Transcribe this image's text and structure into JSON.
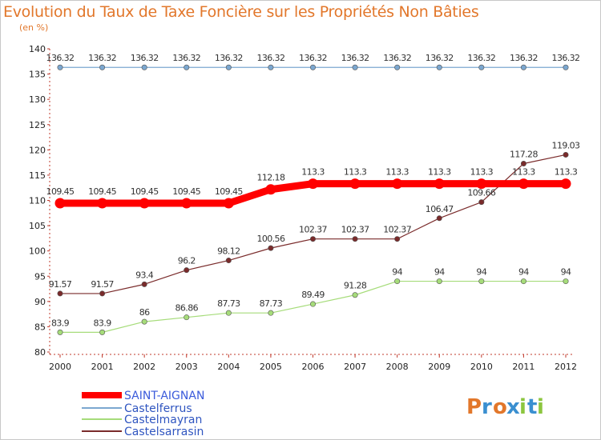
{
  "chart_data": {
    "type": "line",
    "title": "Evolution du Taux de Taxe Foncière sur les Propriétés Non Bâties",
    "subtitle": "(en %)",
    "x": [
      "2000",
      "2001",
      "2002",
      "2003",
      "2004",
      "2005",
      "2006",
      "2007",
      "2008",
      "2009",
      "2010",
      "2011",
      "2012"
    ],
    "ylim": [
      80,
      140
    ],
    "yticks": [
      80,
      85,
      90,
      95,
      100,
      105,
      110,
      115,
      120,
      125,
      130,
      135,
      140
    ],
    "grid": false,
    "legend_position": "bottom-left",
    "series": [
      {
        "name": "SAINT-AIGNAN",
        "color": "#ff0000",
        "values": [
          109.45,
          109.45,
          109.45,
          109.45,
          109.45,
          112.18,
          113.3,
          113.3,
          113.3,
          113.3,
          113.3,
          113.3,
          113.3
        ],
        "labels": [
          "109.45",
          "109.45",
          "109.45",
          "109.45",
          "109.45",
          "112.18",
          "113.3",
          "113.3",
          "113.3",
          "113.3",
          "113.3",
          "113.3",
          "113.3"
        ]
      },
      {
        "name": "Castelferrus",
        "color": "#7ba7d0",
        "values": [
          136.32,
          136.32,
          136.32,
          136.32,
          136.32,
          136.32,
          136.32,
          136.32,
          136.32,
          136.32,
          136.32,
          136.32,
          136.32
        ],
        "labels": [
          "136.32",
          "136.32",
          "136.32",
          "136.32",
          "136.32",
          "136.32",
          "136.32",
          "136.32",
          "136.32",
          "136.32",
          "136.32",
          "136.32",
          "136.32"
        ]
      },
      {
        "name": "Castelmayran",
        "color": "#a6dc7a",
        "values": [
          83.9,
          83.9,
          86,
          86.86,
          87.73,
          87.73,
          89.49,
          91.28,
          94,
          94,
          94,
          94,
          94
        ],
        "labels": [
          "83.9",
          "83.9",
          "86",
          "86.86",
          "87.73",
          "87.73",
          "89.49",
          "91.28",
          "94",
          "94",
          "94",
          "94",
          "94"
        ]
      },
      {
        "name": "Castelsarrasin",
        "color": "#7a2b2b",
        "values": [
          91.57,
          91.57,
          93.4,
          96.2,
          98.12,
          100.56,
          102.37,
          102.37,
          102.37,
          106.47,
          109.66,
          117.28,
          119.03
        ],
        "labels": [
          "91.57",
          "91.57",
          "93.4",
          "96.2",
          "98.12",
          "100.56",
          "102.37",
          "102.37",
          "102.37",
          "106.47",
          "109.66",
          "117.28",
          "119.03"
        ]
      }
    ]
  },
  "logo": {
    "text": "Proxiti",
    "colors": [
      "#e2772b",
      "#3a8fd0",
      "#e2772b",
      "#3a8fd0",
      "#8cc63f",
      "#3a8fd0",
      "#8cc63f"
    ]
  }
}
